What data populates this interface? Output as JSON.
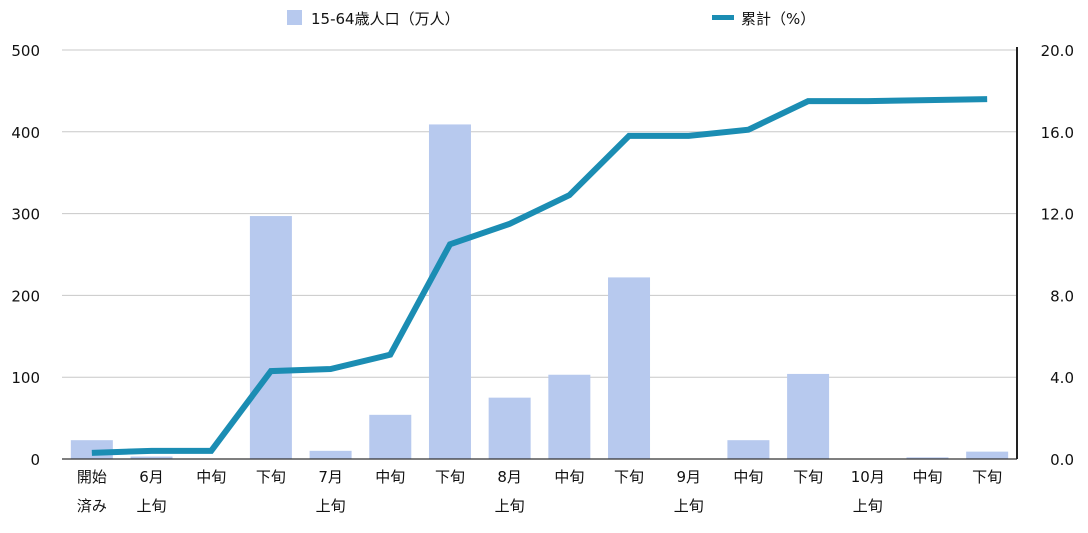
{
  "chart_data": {
    "type": "bar",
    "categories": [
      [
        "開始",
        "済み"
      ],
      [
        "6月",
        "上旬"
      ],
      [
        "中旬"
      ],
      [
        "下旬"
      ],
      [
        "7月",
        "上旬"
      ],
      [
        "中旬"
      ],
      [
        "下旬"
      ],
      [
        "8月",
        "上旬"
      ],
      [
        "中旬"
      ],
      [
        "下旬"
      ],
      [
        "9月",
        "上旬"
      ],
      [
        "中旬"
      ],
      [
        "下旬"
      ],
      [
        "10月",
        "上旬"
      ],
      [
        "中旬"
      ],
      [
        "下旬"
      ]
    ],
    "series": [
      {
        "name": "15-64歳人口（万人）",
        "type": "bar",
        "axis": "left",
        "color": "#b7c9ee",
        "values": [
          23,
          3,
          0,
          297,
          10,
          54,
          409,
          75,
          103,
          222,
          0,
          23,
          104,
          0,
          2,
          9
        ]
      },
      {
        "name": "累計（%）",
        "type": "line",
        "axis": "right",
        "color": "#1b8db3",
        "values": [
          0.3,
          0.4,
          0.4,
          4.3,
          4.4,
          5.1,
          10.5,
          11.5,
          12.9,
          15.8,
          15.8,
          16.1,
          17.5,
          17.5,
          17.55,
          17.6
        ]
      }
    ],
    "y_left": {
      "ylim": [
        0,
        500
      ],
      "ticks": [
        "0",
        "100",
        "200",
        "300",
        "400",
        "500"
      ]
    },
    "y_right": {
      "ylim": [
        0,
        20
      ],
      "ticks": [
        "0.0",
        "4.0",
        "8.0",
        "12.0",
        "16.0",
        "20.0"
      ]
    },
    "grid": true,
    "legend_position": "top"
  }
}
